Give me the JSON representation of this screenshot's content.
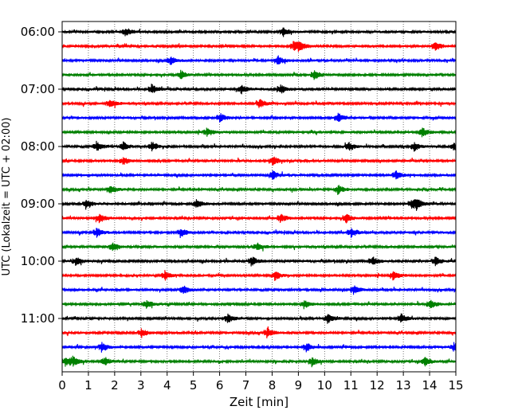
{
  "chart_data": {
    "type": "line",
    "title": "",
    "xlabel": "Zeit  [min]",
    "ylabel": "UTC (Lokalzeit = UTC + 02:00)",
    "xlim": [
      0,
      15
    ],
    "x_ticks": [
      "0",
      "1",
      "2",
      "3",
      "4",
      "5",
      "6",
      "7",
      "8",
      "9",
      "10",
      "11",
      "12",
      "13",
      "14",
      "15"
    ],
    "y_ticks": [
      "06:00",
      "07:00",
      "08:00",
      "09:00",
      "10:00",
      "11:00"
    ],
    "grid": "vertical dotted",
    "trace_interval_min": 15,
    "trace_colors": [
      "#000000",
      "#ff0000",
      "#0000ff",
      "#008000"
    ],
    "traces": [
      {
        "start": "06:00",
        "color": "#000000",
        "events_min": [
          2.4,
          8.4
        ]
      },
      {
        "start": "06:15",
        "color": "#ff0000",
        "events_min": [
          8.8,
          9.0,
          14.2
        ]
      },
      {
        "start": "06:30",
        "color": "#0000ff",
        "events_min": [
          4.1,
          8.2
        ]
      },
      {
        "start": "06:45",
        "color": "#008000",
        "events_min": [
          4.5,
          9.6
        ]
      },
      {
        "start": "07:00",
        "color": "#000000",
        "events_min": [
          3.4,
          6.8,
          8.3
        ]
      },
      {
        "start": "07:15",
        "color": "#ff0000",
        "events_min": [
          1.8,
          7.5
        ]
      },
      {
        "start": "07:30",
        "color": "#0000ff",
        "events_min": [
          6.0,
          10.5
        ]
      },
      {
        "start": "07:45",
        "color": "#008000",
        "events_min": [
          5.5,
          13.7
        ]
      },
      {
        "start": "08:00",
        "color": "#000000",
        "events_min": [
          1.3,
          2.3,
          3.4,
          10.9,
          13.4,
          14.9
        ]
      },
      {
        "start": "08:15",
        "color": "#ff0000",
        "events_min": [
          2.3,
          8.0
        ]
      },
      {
        "start": "08:30",
        "color": "#0000ff",
        "events_min": [
          8.0,
          12.7
        ]
      },
      {
        "start": "08:45",
        "color": "#008000",
        "events_min": [
          1.8,
          10.5
        ]
      },
      {
        "start": "09:00",
        "color": "#000000",
        "events_min": [
          0.9,
          5.1,
          13.3,
          13.5
        ]
      },
      {
        "start": "09:15",
        "color": "#ff0000",
        "events_min": [
          1.4,
          8.3,
          10.8
        ]
      },
      {
        "start": "09:30",
        "color": "#0000ff",
        "events_min": [
          1.3,
          4.5,
          11.0
        ]
      },
      {
        "start": "09:45",
        "color": "#008000",
        "events_min": [
          1.9,
          7.4
        ]
      },
      {
        "start": "10:00",
        "color": "#000000",
        "events_min": [
          0.5,
          7.2,
          11.8,
          14.2
        ]
      },
      {
        "start": "10:15",
        "color": "#ff0000",
        "events_min": [
          3.9,
          8.1,
          12.6
        ]
      },
      {
        "start": "10:30",
        "color": "#0000ff",
        "events_min": [
          4.6,
          11.1
        ]
      },
      {
        "start": "10:45",
        "color": "#008000",
        "events_min": [
          3.2,
          9.2,
          14.0
        ]
      },
      {
        "start": "11:00",
        "color": "#000000",
        "events_min": [
          6.3,
          10.1,
          12.9
        ]
      },
      {
        "start": "11:15",
        "color": "#ff0000",
        "events_min": [
          3.0,
          7.8
        ]
      },
      {
        "start": "11:30",
        "color": "#0000ff",
        "events_min": [
          1.5,
          9.3,
          14.9
        ]
      },
      {
        "start": "11:45",
        "color": "#008000",
        "events_min": [
          0.1,
          0.4,
          1.6,
          9.5,
          13.8
        ]
      }
    ]
  }
}
